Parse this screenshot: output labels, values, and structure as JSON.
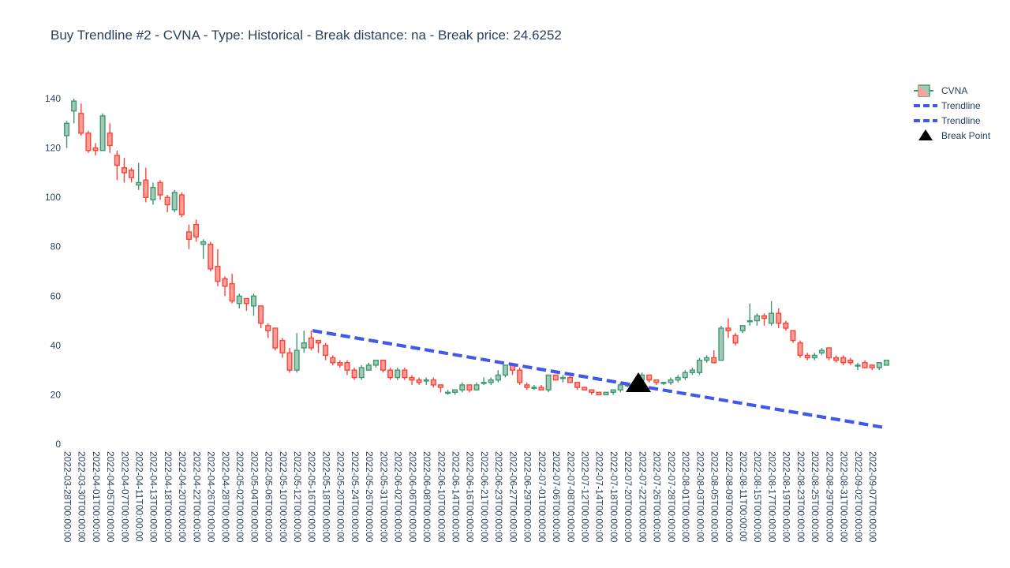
{
  "chart_data": {
    "type": "candlestick",
    "title": "Buy Trendline #2 - CVNA - Type: Historical - Break distance: na - Break price: 24.6252",
    "ylim": [
      0,
      148
    ],
    "y_ticks": [
      0,
      20,
      40,
      60,
      80,
      100,
      120,
      140
    ],
    "x_tick_labels": [
      "2022-03-28T00:00:00",
      "2022-03-30T00:00:00",
      "2022-04-01T00:00:00",
      "2022-04-05T00:00:00",
      "2022-04-07T00:00:00",
      "2022-04-11T00:00:00",
      "2022-04-13T00:00:00",
      "2022-04-18T00:00:00",
      "2022-04-20T00:00:00",
      "2022-04-22T00:00:00",
      "2022-04-26T00:00:00",
      "2022-04-28T00:00:00",
      "2022-05-02T00:00:00",
      "2022-05-04T00:00:00",
      "2022-05-06T00:00:00",
      "2022-05-10T00:00:00",
      "2022-05-12T00:00:00",
      "2022-05-16T00:00:00",
      "2022-05-18T00:00:00",
      "2022-05-20T00:00:00",
      "2022-05-24T00:00:00",
      "2022-05-26T00:00:00",
      "2022-05-31T00:00:00",
      "2022-06-02T00:00:00",
      "2022-06-06T00:00:00",
      "2022-06-08T00:00:00",
      "2022-06-10T00:00:00",
      "2022-06-14T00:00:00",
      "2022-06-16T00:00:00",
      "2022-06-21T00:00:00",
      "2022-06-23T00:00:00",
      "2022-06-27T00:00:00",
      "2022-06-29T00:00:00",
      "2022-07-01T00:00:00",
      "2022-07-06T00:00:00",
      "2022-07-08T00:00:00",
      "2022-07-12T00:00:00",
      "2022-07-14T00:00:00",
      "2022-07-18T00:00:00",
      "2022-07-20T00:00:00",
      "2022-07-22T00:00:00",
      "2022-07-26T00:00:00",
      "2022-07-28T00:00:00",
      "2022-08-01T00:00:00",
      "2022-08-03T00:00:00",
      "2022-08-05T00:00:00",
      "2022-08-09T00:00:00",
      "2022-08-11T00:00:00",
      "2022-08-15T00:00:00",
      "2022-08-17T00:00:00",
      "2022-08-19T00:00:00",
      "2022-08-23T00:00:00",
      "2022-08-25T00:00:00",
      "2022-08-29T00:00:00",
      "2022-08-31T00:00:00",
      "2022-09-02T00:00:00",
      "2022-09-07T00:00:00"
    ],
    "candles": [
      [
        125,
        131,
        120,
        130
      ],
      [
        135,
        140,
        130,
        139
      ],
      [
        134,
        138,
        125,
        126
      ],
      [
        126,
        127,
        118,
        119
      ],
      [
        120,
        122,
        117,
        119
      ],
      [
        119,
        134,
        119,
        133
      ],
      [
        126,
        130,
        118,
        121
      ],
      [
        117,
        119,
        107,
        113
      ],
      [
        112,
        116,
        106,
        110
      ],
      [
        111,
        112,
        106,
        108
      ],
      [
        105,
        114,
        103,
        106
      ],
      [
        107,
        112,
        98,
        100
      ],
      [
        99,
        106,
        97,
        104
      ],
      [
        106,
        107,
        99,
        101
      ],
      [
        100,
        101,
        94,
        97
      ],
      [
        95,
        103,
        94,
        102
      ],
      [
        101,
        102,
        92,
        93
      ],
      [
        86,
        89,
        79,
        83
      ],
      [
        89,
        91,
        82,
        84
      ],
      [
        81,
        83,
        75,
        82
      ],
      [
        81,
        82,
        70,
        71
      ],
      [
        72,
        79,
        64,
        66
      ],
      [
        67,
        68,
        60,
        64
      ],
      [
        65,
        69,
        57,
        58
      ],
      [
        57,
        61,
        55,
        60
      ],
      [
        59,
        59,
        54,
        57
      ],
      [
        56,
        61,
        52,
        60
      ],
      [
        56,
        56,
        47,
        49
      ],
      [
        48,
        49,
        43,
        46
      ],
      [
        47,
        47,
        38,
        39
      ],
      [
        42,
        43,
        35,
        37
      ],
      [
        37,
        39,
        29,
        30
      ],
      [
        30,
        45,
        29,
        38
      ],
      [
        39,
        46,
        37,
        41
      ],
      [
        43,
        46,
        38,
        39
      ],
      [
        42,
        42,
        37,
        41
      ],
      [
        40,
        41,
        34,
        36
      ],
      [
        35,
        36,
        32,
        33
      ],
      [
        33,
        34,
        31,
        32
      ],
      [
        33,
        34,
        28,
        30
      ],
      [
        30,
        31,
        26,
        27
      ],
      [
        27,
        32,
        26,
        31
      ],
      [
        30,
        33,
        30,
        32
      ],
      [
        32,
        34,
        31,
        34
      ],
      [
        34,
        34,
        29,
        30
      ],
      [
        30,
        31,
        26,
        27
      ],
      [
        27,
        31,
        26,
        30
      ],
      [
        30,
        31,
        26,
        27
      ],
      [
        27,
        28,
        24,
        26
      ],
      [
        26,
        27,
        24,
        25
      ],
      [
        26,
        27,
        24,
        26
      ],
      [
        26,
        27,
        23,
        24
      ],
      [
        24,
        24,
        21,
        23
      ],
      [
        21,
        22,
        20,
        21
      ],
      [
        21,
        22,
        20,
        22
      ],
      [
        22,
        25,
        21,
        24
      ],
      [
        24,
        24,
        21,
        22
      ],
      [
        22,
        25,
        22,
        24
      ],
      [
        25,
        27,
        24,
        25
      ],
      [
        25,
        27,
        24,
        26
      ],
      [
        26,
        30,
        25,
        28
      ],
      [
        28,
        32,
        27,
        32
      ],
      [
        32,
        33,
        28,
        30
      ],
      [
        30,
        31,
        24,
        25
      ],
      [
        24,
        25,
        22,
        23
      ],
      [
        23,
        24,
        22,
        23
      ],
      [
        23,
        24,
        22,
        22
      ],
      [
        22,
        28,
        21,
        28
      ],
      [
        28,
        28,
        26,
        26
      ],
      [
        27,
        28,
        25,
        27
      ],
      [
        27,
        28,
        25,
        25
      ],
      [
        25,
        25,
        22,
        23
      ],
      [
        23,
        23,
        22,
        22
      ],
      [
        22,
        22,
        20,
        21
      ],
      [
        21,
        21,
        20,
        20
      ],
      [
        20,
        21,
        20,
        21
      ],
      [
        21,
        22,
        20,
        22
      ],
      [
        22,
        25,
        21,
        24
      ],
      [
        24,
        24,
        23,
        24
      ],
      [
        24,
        25,
        24,
        25
      ],
      [
        26,
        29,
        25,
        28
      ],
      [
        28,
        28,
        25,
        26
      ],
      [
        26,
        26,
        24,
        25
      ],
      [
        25,
        25,
        24,
        25
      ],
      [
        25,
        27,
        24,
        26
      ],
      [
        26,
        28,
        25,
        27
      ],
      [
        27,
        30,
        26,
        29
      ],
      [
        29,
        31,
        28,
        30
      ],
      [
        29,
        35,
        28,
        34
      ],
      [
        34,
        36,
        33,
        35
      ],
      [
        35,
        38,
        33,
        33
      ],
      [
        34,
        48,
        34,
        47
      ],
      [
        47,
        51,
        43,
        46
      ],
      [
        44,
        45,
        40,
        41
      ],
      [
        46,
        48,
        45,
        48
      ],
      [
        50,
        57,
        48,
        50
      ],
      [
        50,
        53,
        48,
        52
      ],
      [
        52,
        53,
        48,
        51
      ],
      [
        49,
        58,
        48,
        53
      ],
      [
        53,
        55,
        47,
        49
      ],
      [
        49,
        50,
        46,
        47
      ],
      [
        46,
        46,
        41,
        42
      ],
      [
        41,
        42,
        35,
        36
      ],
      [
        36,
        37,
        34,
        35
      ],
      [
        35,
        37,
        34,
        36
      ],
      [
        37,
        39,
        36,
        38
      ],
      [
        39,
        39,
        34,
        35
      ],
      [
        35,
        36,
        33,
        34
      ],
      [
        35,
        36,
        32,
        33
      ],
      [
        34,
        35,
        32,
        33
      ],
      [
        32,
        33,
        30,
        32
      ],
      [
        33,
        34,
        31,
        31
      ],
      [
        32,
        32,
        30,
        31
      ],
      [
        31,
        33,
        30,
        33
      ],
      [
        32,
        34,
        32,
        34
      ]
    ],
    "series": [
      {
        "name": "CVNA",
        "type": "candlestick",
        "increasing_color": "#3D9970",
        "decreasing_color": "#FF4136"
      },
      {
        "name": "Trendline",
        "type": "line",
        "dash": "dash",
        "color": "#4258e8",
        "x": [
          34.2,
          114
        ],
        "y": [
          46,
          6.6
        ]
      },
      {
        "name": "Trendline",
        "type": "line",
        "dash": "dash",
        "color": "#4258e8",
        "x": [
          34.2,
          114
        ],
        "y": [
          46,
          6.6
        ]
      },
      {
        "name": "Break Point",
        "type": "scatter",
        "marker": "triangle-up",
        "color": "#000000",
        "x": [
          79.5
        ],
        "y": [
          24.6252
        ]
      }
    ],
    "legend_position": "top-right"
  }
}
